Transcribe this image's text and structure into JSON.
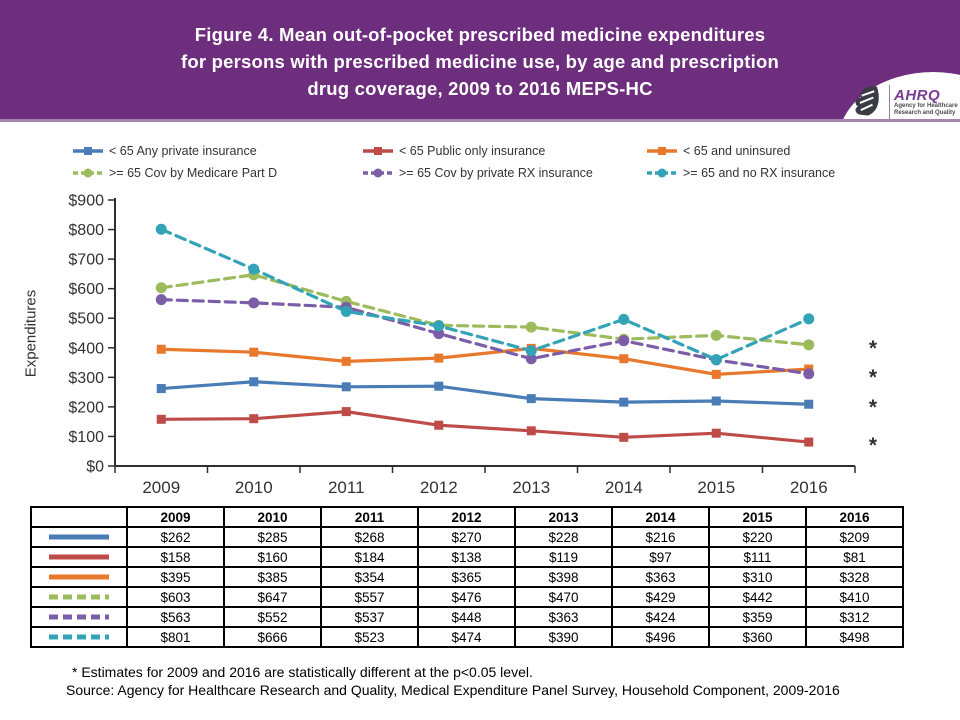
{
  "theme": {
    "header_bg": "#6E2E7E",
    "header_edge": "#A286AE",
    "axis_color": "#2F2F2F",
    "star_color": "#000000"
  },
  "header": {
    "title_lines": [
      "Figure 4. Mean out-of-pocket prescribed medicine expenditures",
      "for persons with prescribed medicine use, by age and prescription",
      "drug coverage, 2009 to 2016 MEPS-HC"
    ],
    "logo": {
      "acronym": "AHRQ",
      "tagline_line1": "Agency for Healthcare",
      "tagline_line2": "Research and Quality"
    }
  },
  "chart_data": {
    "type": "line",
    "x": [
      2009,
      2010,
      2011,
      2012,
      2013,
      2014,
      2015,
      2016
    ],
    "xlabel": "",
    "ylabel": "Expenditures",
    "ylim": [
      0,
      900
    ],
    "ytick_step": 100,
    "ytick_prefix": "$",
    "grid": false,
    "legend_position": "top",
    "star_symbol": "*",
    "series": [
      {
        "name": "< 65 Any private insurance",
        "color": "#4A7CB5",
        "style": "solid",
        "marker": "square",
        "starred": true,
        "values": [
          262,
          285,
          268,
          270,
          228,
          216,
          220,
          209
        ]
      },
      {
        "name": "< 65 Public only insurance",
        "color": "#BE4B48",
        "style": "solid",
        "marker": "square",
        "starred": true,
        "values": [
          158,
          160,
          184,
          138,
          119,
          97,
          111,
          81
        ]
      },
      {
        "name": "< 65 and uninsured",
        "color": "#E8782C",
        "style": "solid",
        "marker": "square",
        "starred": false,
        "values": [
          395,
          385,
          354,
          365,
          398,
          363,
          310,
          328
        ]
      },
      {
        "name": ">= 65 Cov by Medicare Part D",
        "color": "#9CBB5C",
        "style": "dashed",
        "marker": "circle",
        "starred": true,
        "values": [
          603,
          647,
          557,
          476,
          470,
          429,
          442,
          410
        ]
      },
      {
        "name": ">= 65 Cov by private RX insurance",
        "color": "#7B5EA7",
        "style": "dashed",
        "marker": "circle",
        "starred": true,
        "values": [
          563,
          552,
          537,
          448,
          363,
          424,
          359,
          312
        ]
      },
      {
        "name": ">= 65 and no RX insurance",
        "color": "#33A3B8",
        "style": "dashed",
        "marker": "circle",
        "starred": false,
        "values": [
          801,
          666,
          523,
          474,
          390,
          496,
          360,
          498
        ]
      }
    ]
  },
  "table": {
    "columns": [
      "2009",
      "2010",
      "2011",
      "2012",
      "2013",
      "2014",
      "2015",
      "2016"
    ],
    "rows": [
      [
        "$262",
        "$285",
        "$268",
        "$270",
        "$228",
        "$216",
        "$220",
        "$209"
      ],
      [
        "$158",
        "$160",
        "$184",
        "$138",
        "$119",
        "$97",
        "$111",
        "$81"
      ],
      [
        "$395",
        "$385",
        "$354",
        "$365",
        "$398",
        "$363",
        "$310",
        "$328"
      ],
      [
        "$603",
        "$647",
        "$557",
        "$476",
        "$470",
        "$429",
        "$442",
        "$410"
      ],
      [
        "$563",
        "$552",
        "$537",
        "$448",
        "$363",
        "$424",
        "$359",
        "$312"
      ],
      [
        "$801",
        "$666",
        "$523",
        "$474",
        "$390",
        "$496",
        "$360",
        "$498"
      ]
    ]
  },
  "footer": {
    "note": "* Estimates for 2009 and 2016 are statistically different at the p<0.05 level.",
    "source": "Source: Agency for Healthcare Research and Quality, Medical Expenditure Panel Survey, Household Component, 2009-2016"
  }
}
